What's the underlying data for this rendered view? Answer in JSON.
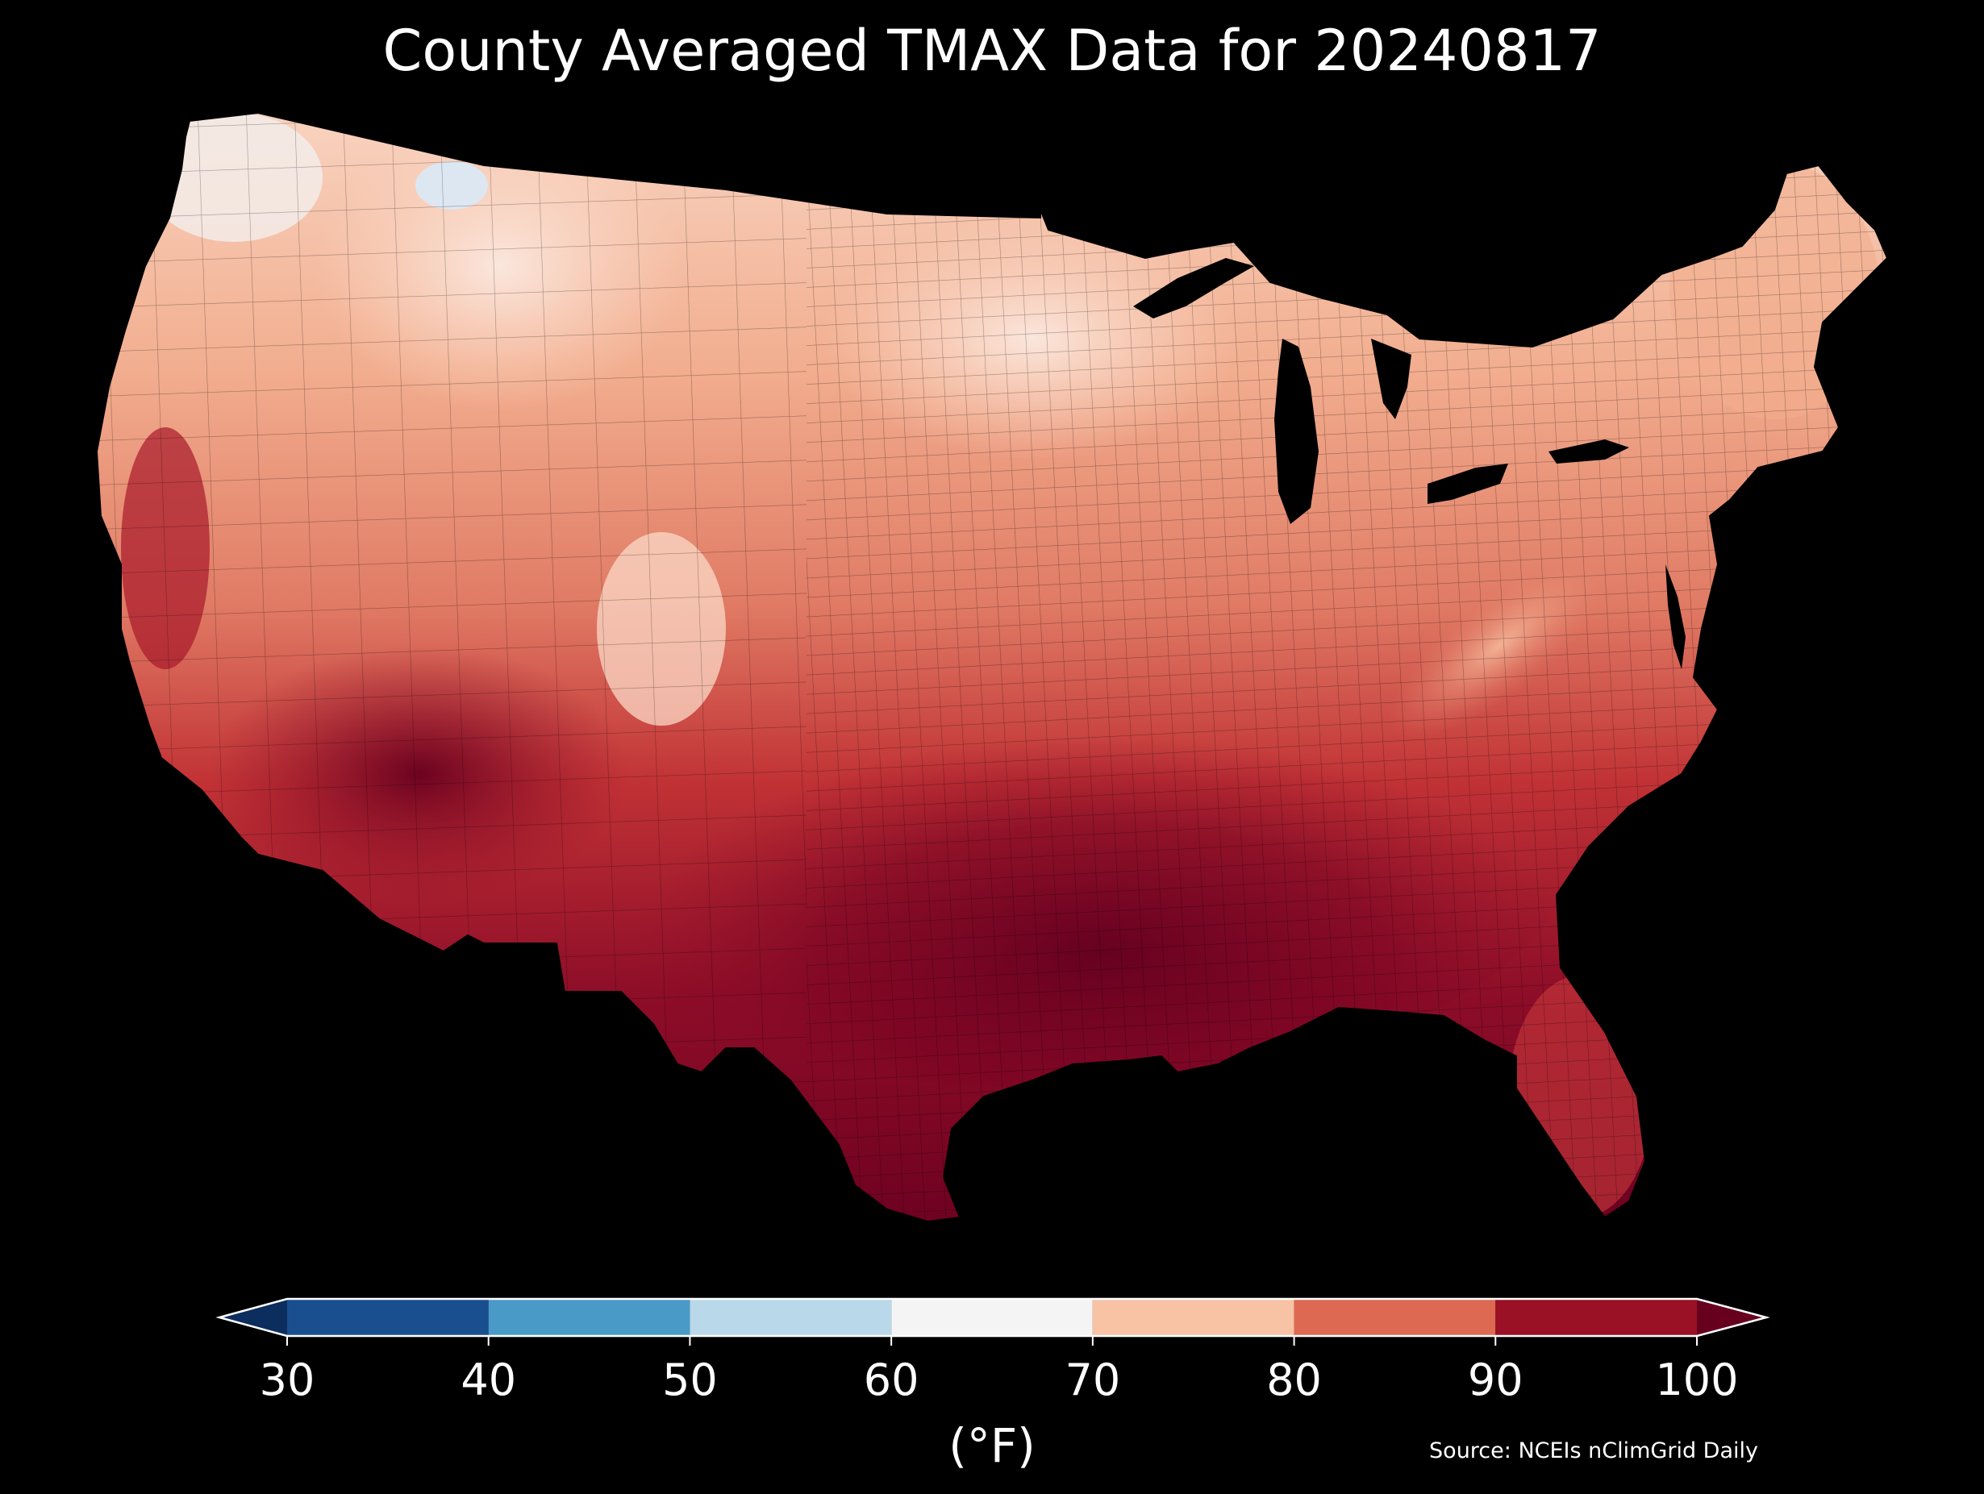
{
  "title": "County Averaged TMAX Data for 20240817",
  "colorbar": {
    "unit": "(°F)",
    "ticks": [
      "30",
      "40",
      "50",
      "60",
      "70",
      "80",
      "90",
      "100"
    ],
    "bins": [
      {
        "from": 30,
        "to": 40,
        "color": "#1a4f8f"
      },
      {
        "from": 40,
        "to": 50,
        "color": "#4a9ac8"
      },
      {
        "from": 50,
        "to": 60,
        "color": "#b9d9ea"
      },
      {
        "from": 60,
        "to": 70,
        "color": "#f4f4f4"
      },
      {
        "from": 70,
        "to": 80,
        "color": "#f8c3a5"
      },
      {
        "from": 80,
        "to": 90,
        "color": "#de6953"
      },
      {
        "from": 90,
        "to": 100,
        "color": "#9a1025"
      }
    ],
    "under_color": "#0c2e5e",
    "over_color": "#67001f"
  },
  "source": "Source: NCEIs nClimGrid Daily",
  "map": {
    "region": "CONUS counties",
    "palette": {
      "very_hot": "#6b0020",
      "hot": "#a8182a",
      "warm_red": "#c93a3c",
      "warm": "#e07a64",
      "mild": "#f2a987",
      "cool": "#fbd9c7",
      "cooler": "#f7f1ee",
      "cold": "#dbe8f4"
    }
  }
}
